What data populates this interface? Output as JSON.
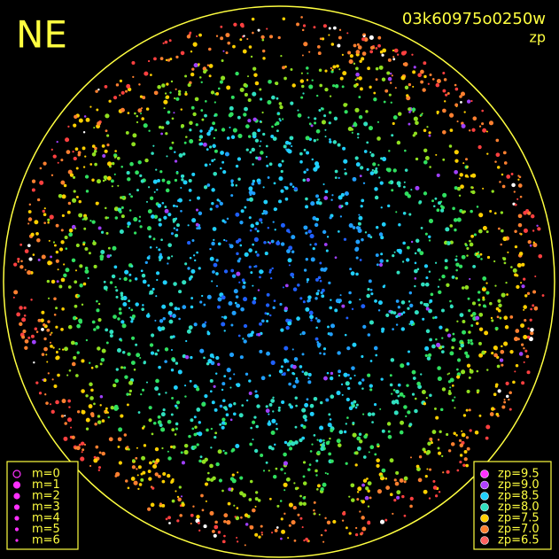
{
  "header": {
    "title": "NE",
    "image_id": "03k60975o0250w",
    "subtitle": "zp"
  },
  "magnitude_legend": {
    "items": [
      {
        "label": "m=0"
      },
      {
        "label": "m=1"
      },
      {
        "label": "m=2"
      },
      {
        "label": "m=3"
      },
      {
        "label": "m=4"
      },
      {
        "label": "m=5"
      },
      {
        "label": "m=6"
      }
    ]
  },
  "zp_legend": {
    "items": [
      {
        "label": "zp=9.5",
        "color": "#ff30ff"
      },
      {
        "label": "zp=9.0",
        "color": "#b040ff"
      },
      {
        "label": "zp=8.5",
        "color": "#20d0ff"
      },
      {
        "label": "zp=8.0",
        "color": "#30e0c0"
      },
      {
        "label": "zp=7.5",
        "color": "#ffd000"
      },
      {
        "label": "zp=7.0",
        "color": "#ff8030"
      },
      {
        "label": "zp=6.5",
        "color": "#ff6060"
      }
    ]
  }
}
